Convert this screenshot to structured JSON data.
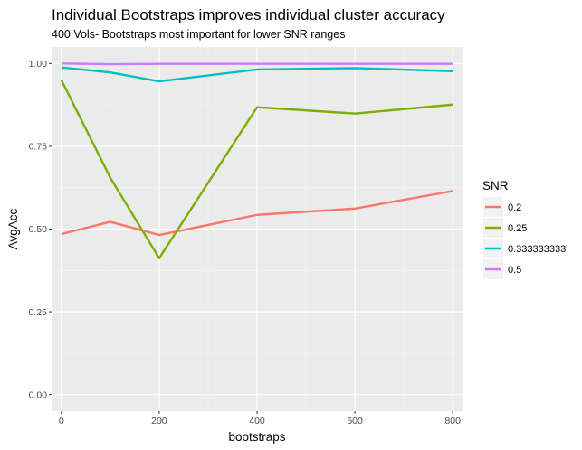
{
  "chart_data": {
    "type": "line",
    "title": "Individual Bootstraps improves individual cluster accuracy",
    "subtitle": "400 Vols- Bootstraps most important for lower SNR ranges",
    "xlabel": "bootstraps",
    "ylabel": "AvgAcc",
    "xlim": [
      -20,
      820
    ],
    "ylim": [
      -0.05,
      1.05
    ],
    "xticks": [
      0,
      200,
      400,
      600,
      800
    ],
    "xtick_labels": [
      "0",
      "200",
      "400",
      "600",
      "800"
    ],
    "yticks": [
      0,
      0.25,
      0.5,
      0.75,
      1.0
    ],
    "ytick_labels": [
      "0.00",
      "0.25",
      "0.50",
      "0.75",
      "1.00"
    ],
    "grid": true,
    "background": "#ebebeb",
    "legend": {
      "title": "SNR",
      "position": "right"
    },
    "x": [
      0,
      100,
      200,
      400,
      600,
      800
    ],
    "series": [
      {
        "name": "0.2",
        "color": "#f8766d",
        "values": [
          0.485,
          0.522,
          0.482,
          0.543,
          0.562,
          0.615
        ]
      },
      {
        "name": "0.25",
        "color": "#7cae00",
        "values": [
          0.95,
          0.655,
          0.412,
          0.868,
          0.849,
          0.876
        ]
      },
      {
        "name": "0.333333333",
        "color": "#00bfc4",
        "values": [
          0.988,
          0.973,
          0.946,
          0.982,
          0.986,
          0.977
        ]
      },
      {
        "name": "0.5",
        "color": "#c77cff",
        "values": [
          1.0,
          0.998,
          0.999,
          0.999,
          0.999,
          0.999
        ]
      }
    ]
  }
}
